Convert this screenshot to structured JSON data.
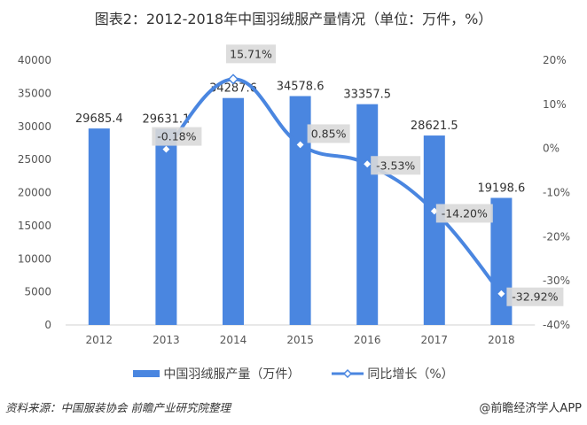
{
  "title": "图表2：2012-2018年中国羽绒服产量情况（单位：万件，%）",
  "chart_data": {
    "type": "bar",
    "title": "图表2：2012-2018年中国羽绒服产量情况（单位：万件，%）",
    "categories": [
      "2012",
      "2013",
      "2014",
      "2015",
      "2016",
      "2017",
      "2018"
    ],
    "series": [
      {
        "name": "中国羽绒服产量（万件）",
        "type": "bar",
        "axis": "left",
        "color": "#4a86e0",
        "values": [
          29685.4,
          29631.1,
          34287.6,
          34578.6,
          33357.5,
          28621.5,
          19198.6
        ],
        "labels": [
          "29685.4",
          "29631.1",
          "34287.6",
          "34578.6",
          "33357.5",
          "28621.5",
          "19198.6"
        ]
      },
      {
        "name": "同比增长（%）",
        "type": "line",
        "axis": "right",
        "color": "#4a86e0",
        "values": [
          null,
          -0.18,
          15.71,
          0.85,
          -3.53,
          -14.2,
          -32.92
        ],
        "labels": [
          null,
          "-0.18%",
          "15.71%",
          "0.85%",
          "-3.53%",
          "-14.20%",
          "-32.92%"
        ]
      }
    ],
    "ylim_left": [
      0,
      40000
    ],
    "yticks_left": [
      "0",
      "5000",
      "10000",
      "15000",
      "20000",
      "25000",
      "30000",
      "35000",
      "40000"
    ],
    "ylim_right": [
      -40,
      20
    ],
    "yticks_right": [
      "-40%",
      "-30%",
      "-20%",
      "-10%",
      "0%",
      "10%",
      "20%"
    ],
    "grid": false,
    "legend": "bottom"
  },
  "legend": {
    "bar": "中国羽绒服产量（万件）",
    "line": "同比增长（%）"
  },
  "source": "资料来源：中国服装协会 前瞻产业研究院整理",
  "brand": "@前瞻经济学人APP"
}
